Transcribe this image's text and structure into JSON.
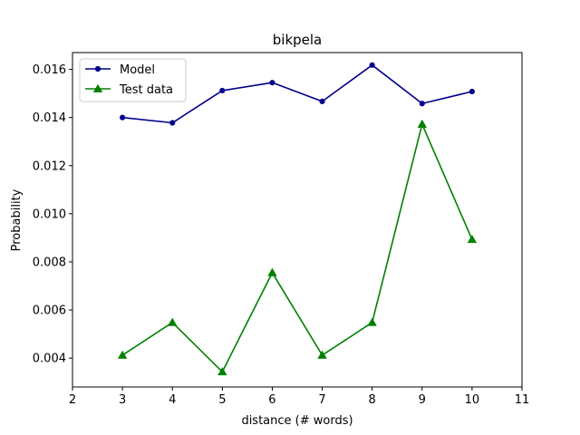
{
  "chart_data": {
    "type": "line",
    "title": "bikpela",
    "xlabel": "distance (# words)",
    "ylabel": "Probability",
    "xlim": [
      2,
      11
    ],
    "ylim": [
      0.0028,
      0.0167
    ],
    "xticks": [
      2,
      3,
      4,
      5,
      6,
      7,
      8,
      9,
      10,
      11
    ],
    "yticks": [
      0.004,
      0.006,
      0.008,
      0.01,
      0.012,
      0.014,
      0.016
    ],
    "ytick_labels": [
      "0.004",
      "0.006",
      "0.008",
      "0.010",
      "0.012",
      "0.014",
      "0.016"
    ],
    "grid": false,
    "legend_position": "upper-left",
    "x": [
      3,
      4,
      5,
      6,
      7,
      8,
      9,
      10
    ],
    "series": [
      {
        "name": "Model",
        "color": "#00008b",
        "marker": "circle",
        "values": [
          0.014,
          0.01378,
          0.01512,
          0.01545,
          0.01467,
          0.01618,
          0.01458,
          0.01508
        ]
      },
      {
        "name": "Test data",
        "color": "#008000",
        "marker": "triangle",
        "values": [
          0.00412,
          0.00548,
          0.00343,
          0.00755,
          0.00412,
          0.00548,
          0.01372,
          0.00893
        ]
      }
    ]
  }
}
